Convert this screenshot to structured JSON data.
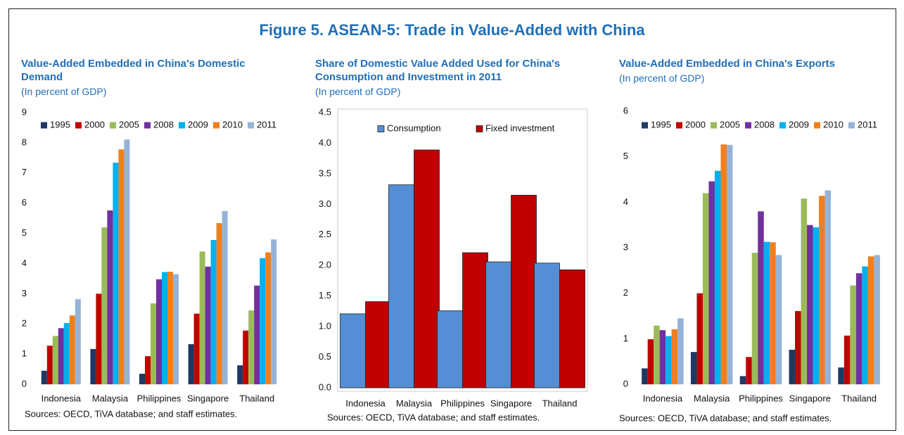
{
  "title": "Figure 5. ASEAN-5: Trade in Value-Added with China",
  "chart_data": [
    {
      "type": "bar",
      "title": "Value-Added Embedded in China's Domestic Demand",
      "subtitle": "(In percent of GDP)",
      "categories": [
        "Indonesia",
        "Malaysia",
        "Philippines",
        "Singapore",
        "Thailand"
      ],
      "series": [
        {
          "name": "1995",
          "color": "#1f3864",
          "values": [
            0.45,
            1.17,
            0.35,
            1.33,
            0.63
          ]
        },
        {
          "name": "2000",
          "color": "#c00000",
          "values": [
            1.28,
            3.0,
            0.93,
            2.34,
            1.78
          ]
        },
        {
          "name": "2005",
          "color": "#9bbb59",
          "values": [
            1.6,
            5.2,
            2.68,
            4.4,
            2.45
          ]
        },
        {
          "name": "2008",
          "color": "#7030a0",
          "values": [
            1.86,
            5.76,
            3.48,
            3.9,
            3.27
          ]
        },
        {
          "name": "2009",
          "color": "#00b0f0",
          "values": [
            2.03,
            7.34,
            3.72,
            4.78,
            4.18
          ]
        },
        {
          "name": "2010",
          "color": "#f07f1e",
          "values": [
            2.28,
            7.78,
            3.73,
            5.34,
            4.37
          ]
        },
        {
          "name": "2011",
          "color": "#95b3d7",
          "values": [
            2.82,
            8.11,
            3.65,
            5.74,
            4.8
          ]
        }
      ],
      "ylim": [
        0,
        9
      ],
      "yticks": [
        0,
        1,
        2,
        3,
        4,
        5,
        6,
        7,
        8,
        9
      ],
      "note": "Sources: OECD, TiVA database; and staff estimates."
    },
    {
      "type": "bar",
      "title": "Share of Domestic Value Added Used for China's Consumption and Investment in 2011",
      "subtitle": "(In percent of GDP)",
      "categories": [
        "Indonesia",
        "Malaysia",
        "Philippines",
        "Singapore",
        "Thailand"
      ],
      "series": [
        {
          "name": "Consumption",
          "color": "#558ed5",
          "values": [
            1.21,
            3.32,
            1.26,
            2.06,
            2.04
          ]
        },
        {
          "name": "Fixed investment",
          "color": "#c00000",
          "values": [
            1.41,
            3.89,
            2.21,
            3.15,
            1.93
          ]
        }
      ],
      "ylim": [
        0,
        4.5
      ],
      "yticks": [
        {
          "value": 0,
          "label": "0.0"
        },
        0.5,
        {
          "value": 1,
          "label": "1.0"
        },
        1.5,
        {
          "value": 2,
          "label": "2.0"
        },
        2.5,
        {
          "value": 3,
          "label": "3.0"
        },
        3.5,
        {
          "value": 4,
          "label": "4.0"
        },
        4.5
      ],
      "note": "Sources: OECD, TiVA database; and staff estimates."
    },
    {
      "type": "bar",
      "title": "Value-Added Embedded in China's Exports",
      "subtitle": "(In percent of GDP)",
      "categories": [
        "Indonesia",
        "Malaysia",
        "Philippines",
        "Singapore",
        "Thailand"
      ],
      "series": [
        {
          "name": "1995",
          "color": "#1f3864",
          "values": [
            0.35,
            0.71,
            0.18,
            0.76,
            0.37
          ]
        },
        {
          "name": "2000",
          "color": "#c00000",
          "values": [
            0.99,
            2.0,
            0.6,
            1.61,
            1.07
          ]
        },
        {
          "name": "2005",
          "color": "#9bbb59",
          "values": [
            1.29,
            4.2,
            2.89,
            4.08,
            2.17
          ]
        },
        {
          "name": "2008",
          "color": "#7030a0",
          "values": [
            1.19,
            4.46,
            3.8,
            3.5,
            2.44
          ]
        },
        {
          "name": "2009",
          "color": "#00b0f0",
          "values": [
            1.06,
            4.69,
            3.13,
            3.45,
            2.59
          ]
        },
        {
          "name": "2010",
          "color": "#f07f1e",
          "values": [
            1.21,
            5.27,
            3.12,
            4.14,
            2.81
          ]
        },
        {
          "name": "2011",
          "color": "#95b3d7",
          "values": [
            1.45,
            5.26,
            2.84,
            4.26,
            2.84
          ]
        }
      ],
      "ylim": [
        0,
        6
      ],
      "yticks": [
        0,
        1,
        2,
        3,
        4,
        5,
        6
      ],
      "note": "Sources: OECD, TiVA database; and staff estimates."
    }
  ]
}
